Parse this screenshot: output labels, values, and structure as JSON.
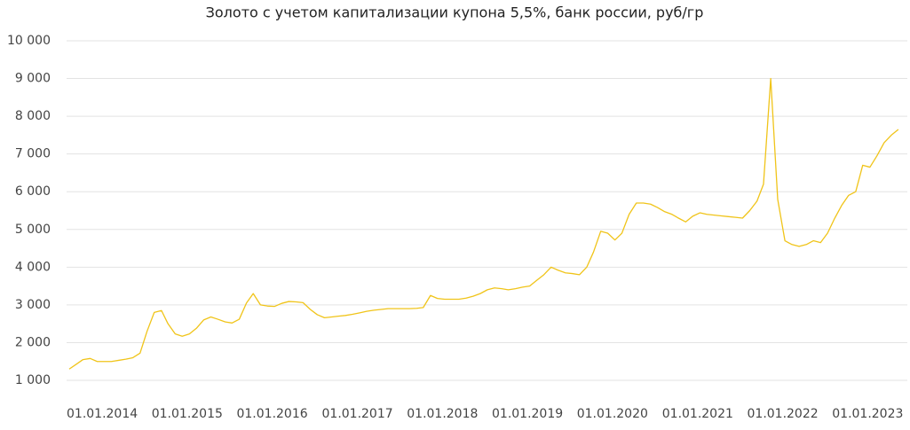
{
  "chart_data": {
    "type": "line",
    "title": "Золото с учетом капитализации купона 5,5%, банк россии, руб/гр",
    "x": [
      "01.01.2014",
      "01.02.2014",
      "01.03.2014",
      "01.04.2014",
      "01.05.2014",
      "01.06.2014",
      "01.07.2014",
      "01.08.2014",
      "01.09.2014",
      "01.10.2014",
      "01.11.2014",
      "01.12.2014",
      "01.01.2015",
      "01.02.2015",
      "01.03.2015",
      "01.04.2015",
      "01.05.2015",
      "01.06.2015",
      "01.07.2015",
      "01.08.2015",
      "01.09.2015",
      "01.10.2015",
      "01.11.2015",
      "01.12.2015",
      "01.01.2016",
      "01.02.2016",
      "01.03.2016",
      "01.04.2016",
      "01.05.2016",
      "01.06.2016",
      "01.07.2016",
      "01.08.2016",
      "01.09.2016",
      "01.10.2016",
      "01.11.2016",
      "01.12.2016",
      "01.01.2017",
      "01.02.2017",
      "01.03.2017",
      "01.04.2017",
      "01.05.2017",
      "01.06.2017",
      "01.07.2017",
      "01.08.2017",
      "01.09.2017",
      "01.10.2017",
      "01.11.2017",
      "01.12.2017",
      "01.01.2018",
      "01.02.2018",
      "01.03.2018",
      "01.04.2018",
      "01.05.2018",
      "01.06.2018",
      "01.07.2018",
      "01.08.2018",
      "01.09.2018",
      "01.10.2018",
      "01.11.2018",
      "01.12.2018",
      "01.01.2019",
      "01.02.2019",
      "01.03.2019",
      "01.04.2019",
      "01.05.2019",
      "01.06.2019",
      "01.07.2019",
      "01.08.2019",
      "01.09.2019",
      "01.10.2019",
      "01.11.2019",
      "01.12.2019",
      "01.01.2020",
      "01.02.2020",
      "01.03.2020",
      "01.04.2020",
      "01.05.2020",
      "01.06.2020",
      "01.07.2020",
      "01.08.2020",
      "01.09.2020",
      "01.10.2020",
      "01.11.2020",
      "01.12.2020",
      "01.01.2021",
      "01.02.2021",
      "01.03.2021",
      "01.04.2021",
      "01.05.2021",
      "01.06.2021",
      "01.07.2021",
      "01.08.2021",
      "01.09.2021",
      "01.10.2021",
      "01.11.2021",
      "01.12.2021",
      "01.01.2022",
      "01.02.2022",
      "01.03.2022",
      "01.04.2022",
      "01.05.2022",
      "01.06.2022",
      "01.07.2022",
      "01.08.2022",
      "01.09.2022",
      "01.10.2022",
      "01.11.2022",
      "01.12.2022",
      "01.01.2023",
      "01.02.2023",
      "01.03.2023",
      "01.04.2023",
      "01.05.2023",
      "01.06.2023",
      "01.07.2023",
      "01.08.2023",
      "01.09.2023",
      "01.10.2023"
    ],
    "values": [
      1300,
      1430,
      1550,
      1580,
      1500,
      1500,
      1500,
      1530,
      1560,
      1600,
      1720,
      2300,
      2800,
      2850,
      2500,
      2230,
      2170,
      2230,
      2380,
      2600,
      2680,
      2620,
      2550,
      2520,
      2620,
      3050,
      3300,
      3000,
      2970,
      2960,
      3040,
      3090,
      3080,
      3060,
      2880,
      2740,
      2660,
      2680,
      2700,
      2720,
      2750,
      2790,
      2830,
      2860,
      2880,
      2900,
      2900,
      2900,
      2900,
      2910,
      2930,
      3250,
      3170,
      3150,
      3150,
      3150,
      3180,
      3230,
      3300,
      3400,
      3450,
      3430,
      3400,
      3430,
      3470,
      3500,
      3650,
      3800,
      4000,
      3920,
      3850,
      3830,
      3800,
      4000,
      4400,
      4950,
      4900,
      4720,
      4900,
      5400,
      5700,
      5700,
      5670,
      5580,
      5470,
      5400,
      5300,
      5200,
      5350,
      5440,
      5400,
      5380,
      5360,
      5340,
      5320,
      5300,
      5500,
      5750,
      6200,
      9000,
      5800,
      4700,
      4600,
      4550,
      4600,
      4700,
      4650,
      4900,
      5300,
      5650,
      5900,
      6000,
      6700,
      6650,
      6950,
      7300,
      7500,
      7650
    ],
    "color": "#f0c419",
    "xlim": [
      "01.01.2014",
      "01.11.2023"
    ],
    "xticks": [
      "01.01.2014",
      "01.01.2015",
      "01.01.2016",
      "01.01.2017",
      "01.01.2018",
      "01.01.2019",
      "01.01.2020",
      "01.01.2021",
      "01.01.2022",
      "01.01.2023"
    ],
    "ylim": [
      1000,
      10000
    ],
    "yticks": [
      {
        "value": 1000,
        "label": "1 000"
      },
      {
        "value": 2000,
        "label": "2 000"
      },
      {
        "value": 3000,
        "label": "3 000"
      },
      {
        "value": 4000,
        "label": "4 000"
      },
      {
        "value": 5000,
        "label": "5 000"
      },
      {
        "value": 6000,
        "label": "6 000"
      },
      {
        "value": 7000,
        "label": "7 000"
      },
      {
        "value": 8000,
        "label": "8 000"
      },
      {
        "value": 9000,
        "label": "9 000"
      },
      {
        "value": 10000,
        "label": "10 000"
      }
    ],
    "grid": true
  }
}
